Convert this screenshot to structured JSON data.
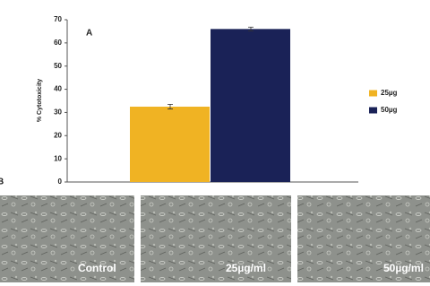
{
  "chart_data": {
    "type": "bar",
    "annotations": [
      "A"
    ],
    "y_label": "% Cytotoxicity",
    "categories": [
      null
    ],
    "series": [
      {
        "name": "25µg",
        "color": "#f0b323",
        "values": [
          32.5
        ],
        "errors": [
          1
        ]
      },
      {
        "name": "50µg",
        "color": "#1a2257",
        "values": [
          66
        ],
        "errors": [
          0.8
        ]
      }
    ],
    "ylim": [
      0,
      70
    ],
    "yticks": [
      0,
      10,
      20,
      30,
      40,
      50,
      60,
      70
    ],
    "legend": "right",
    "grid": false
  },
  "panel_b": {
    "label": "B",
    "images": [
      {
        "caption": "Control"
      },
      {
        "caption": "25µg/ml"
      },
      {
        "caption": "50µg/ml"
      }
    ]
  }
}
